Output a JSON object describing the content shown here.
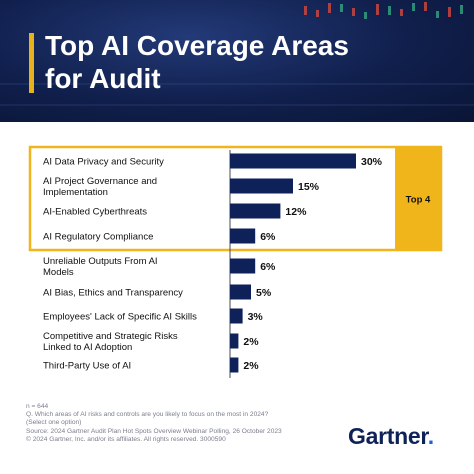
{
  "header": {
    "title_line1": "Top AI Coverage Areas",
    "title_line2": "for Audit"
  },
  "chart_data": {
    "type": "bar",
    "orientation": "horizontal",
    "title": "Top AI Coverage Areas for Audit",
    "categories": [
      [
        "AI Data Privacy and Security"
      ],
      [
        "AI Project Governance and",
        "Implementation"
      ],
      [
        "AI-Enabled Cyberthreats"
      ],
      [
        "AI Regulatory Compliance"
      ],
      [
        "Unreliable Outputs From AI",
        "Models"
      ],
      [
        "AI Bias, Ethics and Transparency"
      ],
      [
        "Employees' Lack of Specific AI Skills"
      ],
      [
        "Competitive and Strategic Risks",
        "Linked to AI Adoption"
      ],
      [
        "Third-Party Use of AI"
      ]
    ],
    "values": [
      30,
      15,
      12,
      6,
      6,
      5,
      3,
      2,
      2
    ],
    "value_labels": [
      "30%",
      "15%",
      "12%",
      "6%",
      "6%",
      "5%",
      "3%",
      "2%",
      "2%"
    ],
    "value_unit": "%",
    "highlight": {
      "label": "Top 4",
      "count": 4
    },
    "grid": false,
    "legend": "none"
  },
  "footer": {
    "lines": [
      "n = 644",
      "Q. Which areas of AI risks and controls are you likely to focus on the most in 2024?",
      "(Select one option)",
      "Source: 2024 Gartner Audit Plan Hot Spots Overview Webinar Polling, 26 October 2023",
      "© 2024 Gartner, Inc. and/or its affiliates. All rights reserved. 3000590"
    ]
  },
  "brand": {
    "name": "Gartner",
    "dot": "."
  },
  "colors": {
    "bar": "#0e2159",
    "highlight": "#f1b51c",
    "header_bg": "#101f4c",
    "accent": "#e8b21c",
    "text": "#111111"
  }
}
